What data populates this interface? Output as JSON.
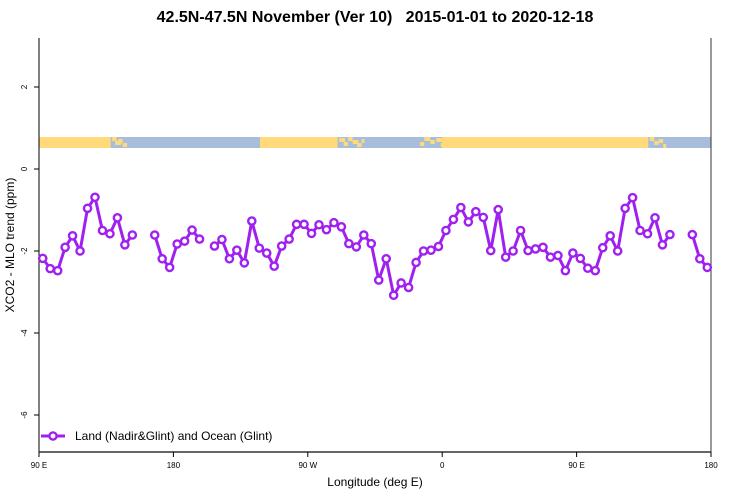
{
  "chart_data": {
    "type": "line",
    "title": "42.5N-47.5N November (Ver 10)   2015-01-01 to 2020-12-18",
    "xlabel": "Longitude (deg E)",
    "ylabel": "XCO2 - MLO trend (ppm)",
    "xlim_labels": [
      "90 E",
      "180"
    ],
    "x_ticks": [
      "90 E",
      "180",
      "90 W",
      "0",
      "90 E",
      "180"
    ],
    "y_ticks": [
      2,
      0,
      -2,
      -4,
      -6
    ],
    "ylim": [
      -6.8,
      3.2
    ],
    "grid": false,
    "legend_position": "bottom-left",
    "land_ocean_strip": {
      "land_color": "#FFD97A",
      "ocean_color": "#A6BDDB"
    },
    "series": [
      {
        "name": "Land (Nadir&Glint) and Ocean (Glint)",
        "color": "#A020F0",
        "x": [
          92.5,
          97.5,
          102.5,
          107.5,
          112.5,
          117.5,
          122.5,
          127.5,
          132.5,
          137.5,
          142.5,
          147.5,
          152.5,
          157.5,
          162.5,
          167.5,
          172.5,
          177.5,
          -177.5,
          -172.5,
          -167.5,
          -162.5,
          -157.5,
          -152.5,
          -147.5,
          -142.5,
          -137.5,
          -132.5,
          -127.5,
          -122.5,
          -117.5,
          -112.5,
          -107.5,
          -102.5,
          -97.5,
          -92.5,
          -87.5,
          -82.5,
          -77.5,
          -72.5,
          -67.5,
          -62.5,
          -57.5,
          -52.5,
          -47.5,
          -42.5,
          -37.5,
          -32.5,
          -27.5,
          -22.5,
          -17.5,
          -12.5,
          -7.5,
          -2.5,
          2.5,
          7.5,
          12.5,
          17.5,
          22.5,
          27.5,
          32.5,
          37.5,
          42.5,
          47.5,
          52.5,
          57.5,
          62.5,
          67.5,
          72.5,
          77.5,
          82.5,
          87.5,
          92.5,
          97.5,
          102.5,
          107.5,
          112.5,
          117.5,
          122.5,
          127.5,
          132.5,
          137.5,
          142.5,
          147.5,
          152.5,
          157.5,
          162.5,
          167.5,
          172.5,
          177.5
        ],
        "y": [
          -2.18,
          -2.43,
          -2.48,
          -1.91,
          -1.63,
          -2.0,
          -0.96,
          -0.69,
          -1.5,
          -1.58,
          -1.19,
          -1.85,
          -1.61,
          null,
          null,
          -1.61,
          -2.19,
          -2.4,
          -1.83,
          -1.76,
          -1.49,
          -1.71,
          null,
          -1.88,
          -1.72,
          -2.19,
          -1.98,
          -2.29,
          -1.27,
          -1.93,
          -2.05,
          -2.37,
          -1.88,
          -1.71,
          -1.35,
          -1.35,
          -1.57,
          -1.36,
          -1.48,
          -1.31,
          -1.41,
          -1.82,
          -1.9,
          -1.61,
          -1.82,
          -2.71,
          -2.19,
          -3.08,
          -2.78,
          -2.89,
          -2.28,
          -2.0,
          -1.98,
          -1.89,
          -1.5,
          -1.23,
          -0.94,
          -1.29,
          -1.04,
          -1.18,
          -1.99,
          -0.99,
          -2.15,
          -2.0,
          -1.5,
          -1.99,
          -1.95,
          -1.91,
          -2.15,
          -2.11,
          -2.48,
          -2.05,
          -2.18,
          -2.42,
          -2.48,
          -1.92,
          -1.63,
          -2.0,
          -0.96,
          -0.7,
          -1.5,
          -1.58,
          -1.19,
          -1.85,
          -1.6,
          null,
          null,
          -1.6,
          -2.19,
          -2.4
        ]
      }
    ]
  }
}
